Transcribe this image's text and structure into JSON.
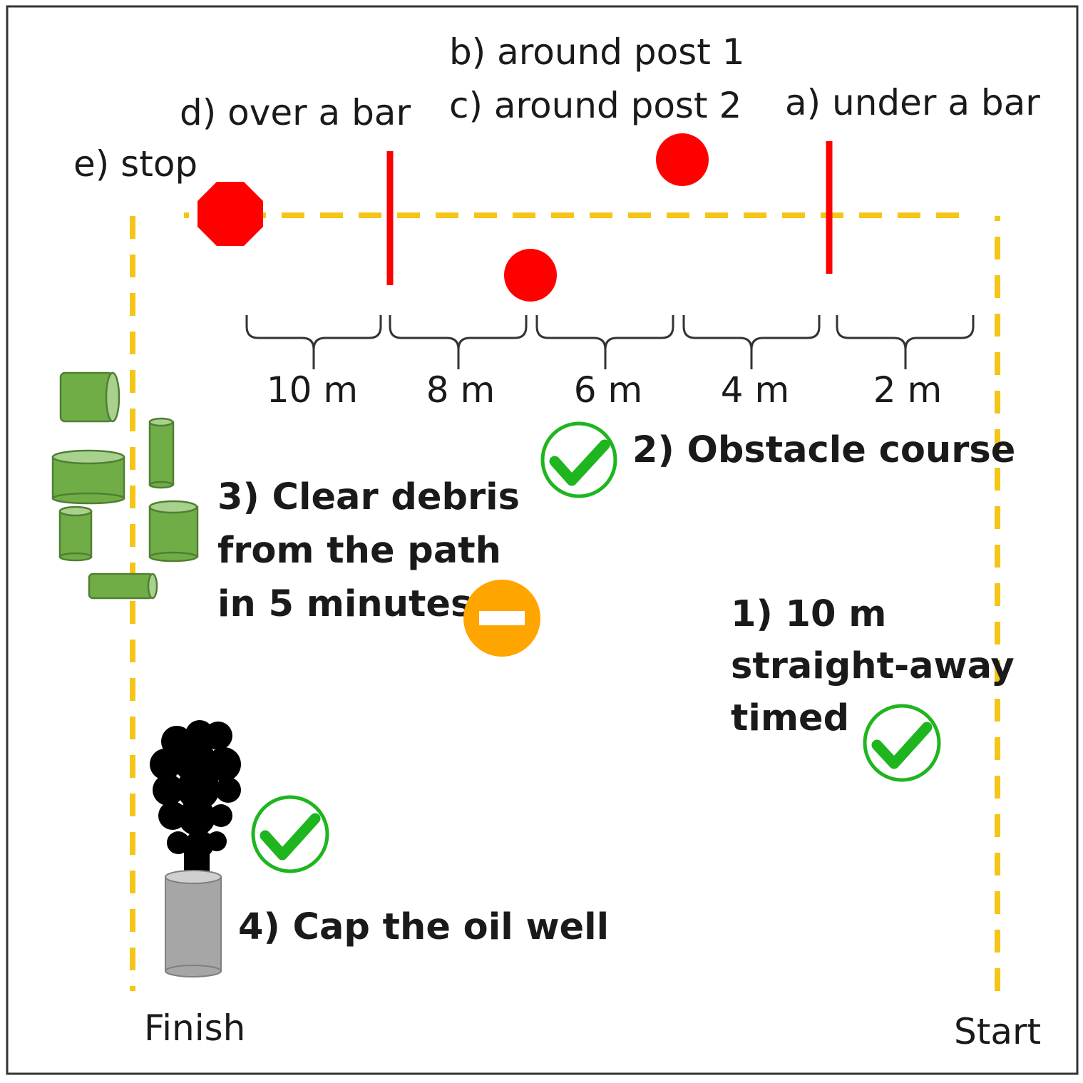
{
  "colors": {
    "path_line": "#f5c518",
    "obstacle": "#ff0000",
    "debris_fill": "#70ad47",
    "debris_stroke": "#507e32",
    "check": "#1fb51f",
    "partial": "#ffa500",
    "oil_smoke": "#000000",
    "well_cap": "#a6a6a6",
    "frame": "#333333"
  },
  "endpoints": {
    "start": "Start",
    "finish": "Finish"
  },
  "obstacles": {
    "a": "a) under a bar",
    "b": "b) around post 1",
    "c": "c) around post 2",
    "d": "d) over a bar",
    "e": "e) stop"
  },
  "distances": [
    "10 m",
    "8 m",
    "6 m",
    "4 m",
    "2 m"
  ],
  "tasks": {
    "t1": {
      "lines": [
        "1) 10 m",
        "straight-away",
        "timed"
      ],
      "status": "check-icon"
    },
    "t2": {
      "label": "2) Obstacle course",
      "status": "check-icon"
    },
    "t3": {
      "lines": [
        "3) Clear debris",
        "from the path",
        "in 5 minutes"
      ],
      "status": "minus-icon"
    },
    "t4": {
      "label": "4) Cap the oil well",
      "status": "check-icon"
    }
  }
}
